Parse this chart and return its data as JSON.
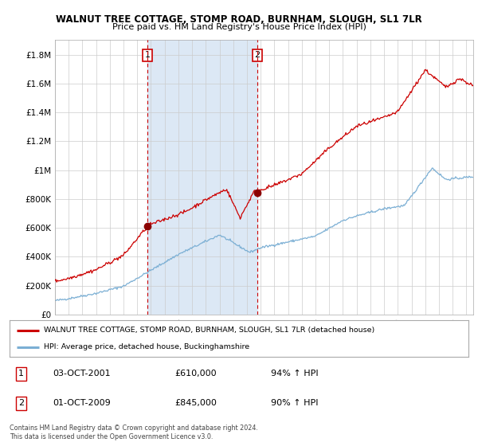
{
  "title": "WALNUT TREE COTTAGE, STOMP ROAD, BURNHAM, SLOUGH, SL1 7LR",
  "subtitle": "Price paid vs. HM Land Registry's House Price Index (HPI)",
  "ylim": [
    0,
    1900000
  ],
  "yticks": [
    0,
    200000,
    400000,
    600000,
    800000,
    1000000,
    1200000,
    1400000,
    1600000,
    1800000
  ],
  "ytick_labels": [
    "£0",
    "£200K",
    "£400K",
    "£600K",
    "£800K",
    "£1M",
    "£1.2M",
    "£1.4M",
    "£1.6M",
    "£1.8M"
  ],
  "xlim_start": 1995,
  "xlim_end": 2025.5,
  "background_color": "#ffffff",
  "plot_bg_color": "#ffffff",
  "grid_color": "#cccccc",
  "shade_color": "#dce8f5",
  "sale1": {
    "date_x": 2001.75,
    "price": 610000,
    "label": "1"
  },
  "sale2": {
    "date_x": 2009.75,
    "price": 845000,
    "label": "2"
  },
  "legend_entries": [
    "WALNUT TREE COTTAGE, STOMP ROAD, BURNHAM, SLOUGH, SL1 7LR (detached house)",
    "HPI: Average price, detached house, Buckinghamshire"
  ],
  "table_rows": [
    [
      "1",
      "03-OCT-2001",
      "£610,000",
      "94% ↑ HPI"
    ],
    [
      "2",
      "01-OCT-2009",
      "£845,000",
      "90% ↑ HPI"
    ]
  ],
  "footer": "Contains HM Land Registry data © Crown copyright and database right 2024.\nThis data is licensed under the Open Government Licence v3.0.",
  "hpi_color": "#7bafd4",
  "price_color": "#cc0000",
  "vline_color": "#cc0000"
}
